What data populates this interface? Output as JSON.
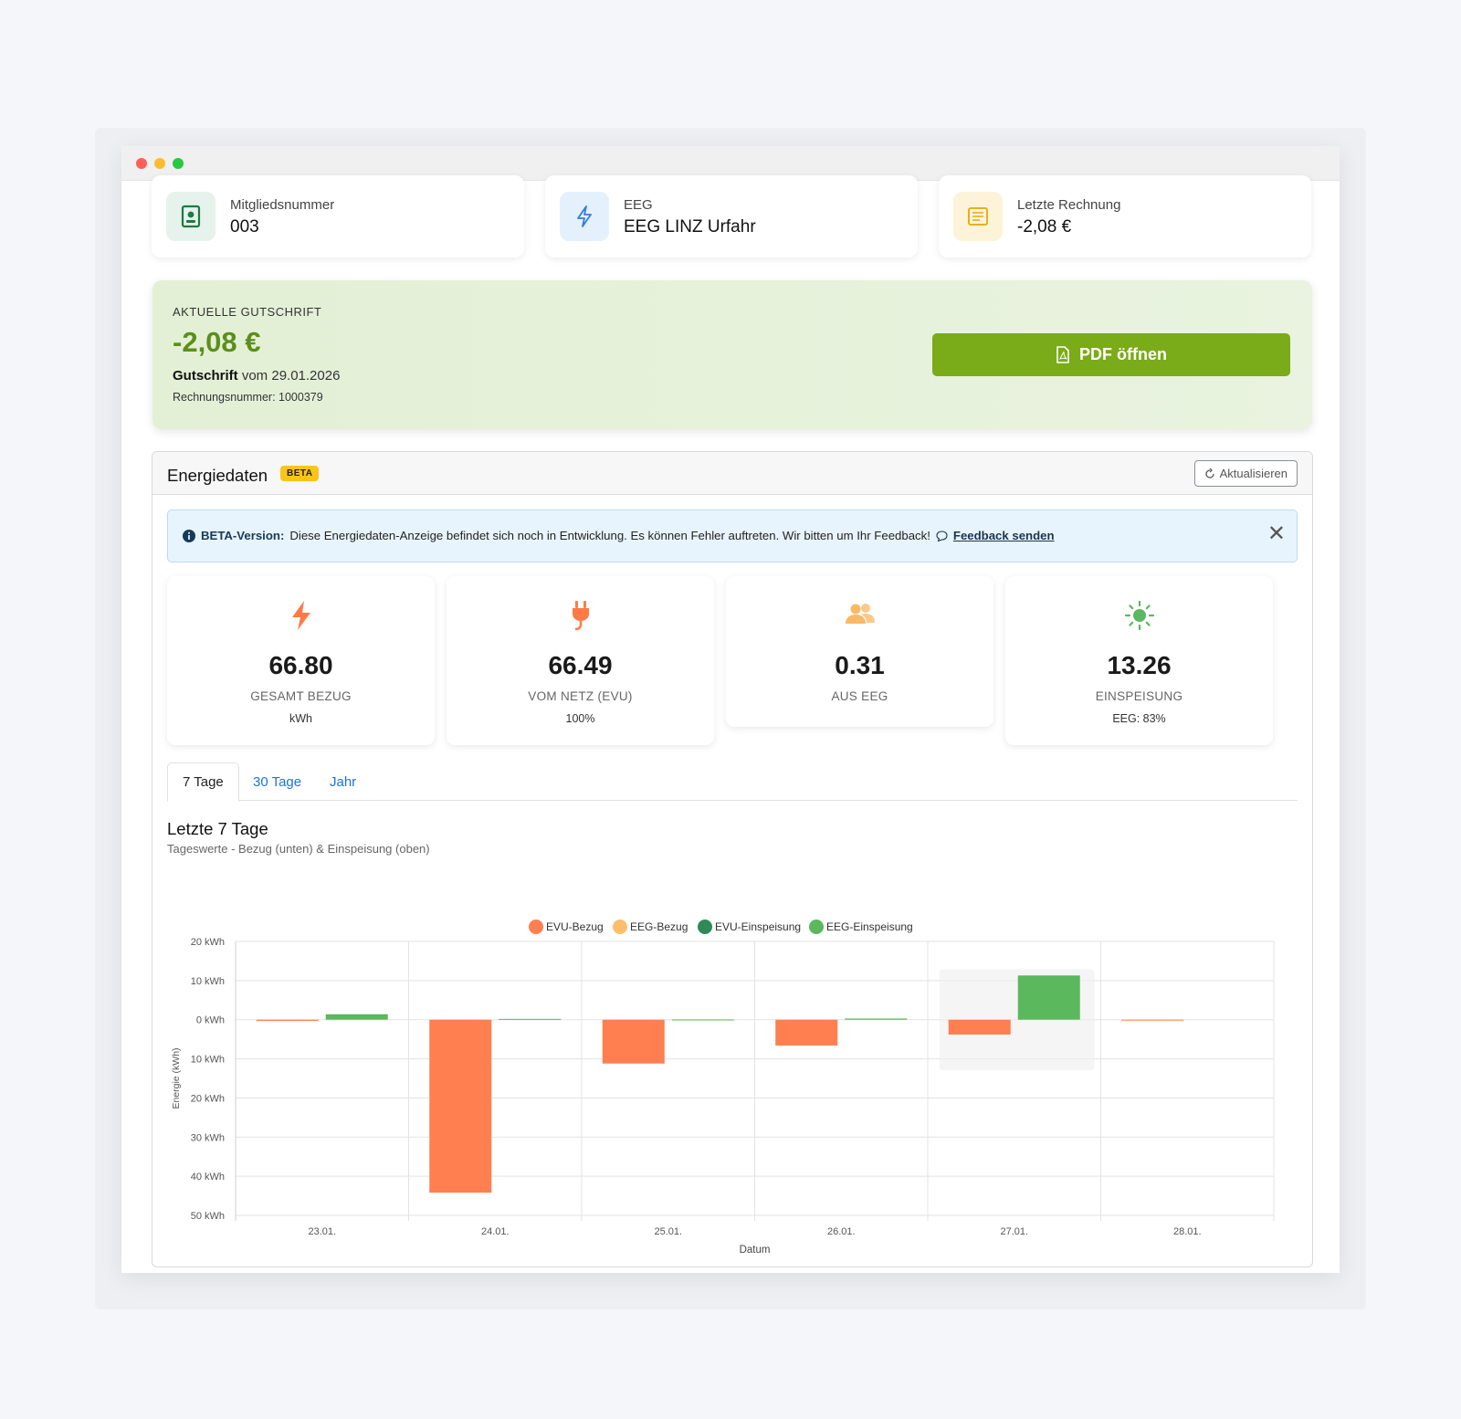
{
  "info_cards": [
    {
      "label": "Mitgliedsnummer",
      "value": "003",
      "icon": "member-card-icon",
      "icon_bg": "#e6f2ec",
      "icon_color": "#1f7a45"
    },
    {
      "label": "EEG",
      "value": "EEG LINZ Urfahr",
      "icon": "lightning-icon",
      "icon_bg": "#e5f0fd",
      "icon_color": "#2f7ee0"
    },
    {
      "label": "Letzte Rechnung",
      "value": "-2,08 €",
      "icon": "invoice-icon",
      "icon_bg": "#fdf3d8",
      "icon_color": "#e6b01e"
    }
  ],
  "credit": {
    "kicker": "AKTUELLE GUTSCHRIFT",
    "amount": "-2,08 €",
    "type": "Gutschrift",
    "date_text": "vom 29.01.2026",
    "invoice_number": "Rechnungsnummer: 1000379",
    "pdf_button": "PDF öffnen",
    "accent": "#7aab18"
  },
  "energy": {
    "title": "Energiedaten",
    "badge": "BETA",
    "refresh": "Aktualisieren",
    "alert": {
      "title": "BETA-Version:",
      "text": "Diese Energiedaten-Anzeige befindet sich noch in Entwicklung. Es können Fehler auftreten. Wir bitten um Ihr Feedback!",
      "link": "Feedback senden"
    },
    "stats": [
      {
        "value": "66.80",
        "label": "GESAMT BEZUG",
        "sub": "kWh",
        "icon": "lightning-icon",
        "color": "#ff7a45"
      },
      {
        "value": "66.49",
        "label": "VOM NETZ (EVU)",
        "sub": "100%",
        "icon": "plug-icon",
        "color": "#ff7a45"
      },
      {
        "value": "0.31",
        "label": "AUS EEG",
        "sub": "",
        "icon": "users-icon",
        "color": "#f9b968"
      },
      {
        "value": "13.26",
        "label": "EINSPEISUNG",
        "sub": "EEG: 83%",
        "icon": "sun-icon",
        "color": "#5cb860"
      }
    ],
    "tabs": [
      "7 Tage",
      "30 Tage",
      "Jahr"
    ],
    "active_tab": "7 Tage",
    "chart_title": "Letzte 7 Tage",
    "chart_subtitle": "Tageswerte - Bezug (unten) & Einspeisung (oben)"
  },
  "chart_data": {
    "type": "bar",
    "categories": [
      "23.01.",
      "24.01.",
      "25.01.",
      "26.01.",
      "27.01.",
      "28.01."
    ],
    "series": [
      {
        "name": "EVU-Bezug",
        "color": "#ff7f50",
        "values": [
          -0.3,
          -44.2,
          -11.2,
          -6.6,
          -3.8,
          -0.2
        ]
      },
      {
        "name": "EEG-Bezug",
        "color": "#fdbf6f",
        "values": [
          0,
          0,
          0,
          0,
          0,
          0
        ]
      },
      {
        "name": "EVU-Einspeisung",
        "color": "#2e8b57",
        "values": [
          0,
          0,
          0,
          0,
          0,
          0
        ]
      },
      {
        "name": "EEG-Einspeisung",
        "color": "#5cb85c",
        "values": [
          1.4,
          0.2,
          0.05,
          0.3,
          11.3,
          0
        ]
      }
    ],
    "xlabel": "Datum",
    "ylabel": "Energie (kWh)",
    "ylim": [
      -50,
      20
    ],
    "yticks": [
      "20 kWh",
      "10 kWh",
      "0 kWh",
      "10 kWh",
      "20 kWh",
      "30 kWh",
      "40 kWh",
      "50 kWh"
    ],
    "legend_position": "top-center",
    "grid": true
  }
}
